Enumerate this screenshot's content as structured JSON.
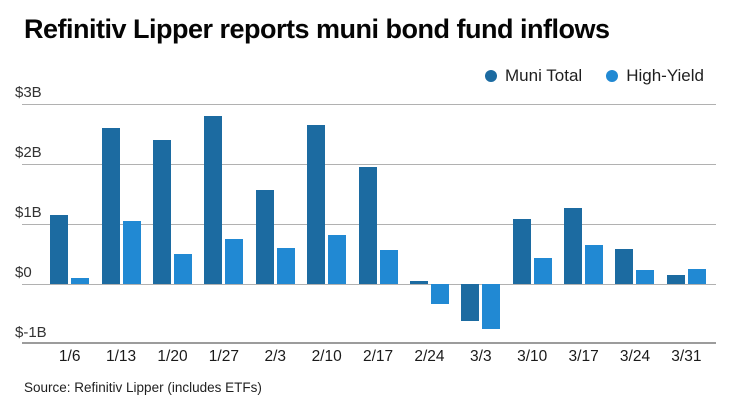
{
  "header": {
    "title": "Refinitiv Lipper reports muni bond fund inflows"
  },
  "legend": {
    "items": [
      {
        "label": "Muni Total",
        "color": "#1c6ba1"
      },
      {
        "label": "High-Yield",
        "color": "#2189d3"
      }
    ]
  },
  "source": {
    "text": "Source: Refinitiv Lipper (includes ETFs)"
  },
  "chart_data": {
    "type": "bar",
    "title": "Refinitiv Lipper reports muni bond fund inflows",
    "categories": [
      "1/6",
      "1/13",
      "1/20",
      "1/27",
      "2/3",
      "2/10",
      "2/17",
      "2/24",
      "3/3",
      "3/10",
      "3/17",
      "3/24",
      "3/31"
    ],
    "series": [
      {
        "name": "Muni Total",
        "color": "#1c6ba1",
        "values": [
          1.15,
          2.6,
          2.4,
          2.8,
          1.57,
          2.65,
          1.95,
          0.05,
          -0.62,
          1.08,
          1.27,
          0.58,
          0.15
        ]
      },
      {
        "name": "High-Yield",
        "color": "#2189d3",
        "values": [
          0.1,
          1.05,
          0.5,
          0.75,
          0.6,
          0.82,
          0.57,
          -0.33,
          -0.75,
          0.43,
          0.65,
          0.23,
          0.25
        ]
      }
    ],
    "y_axis": {
      "ticks": [
        "$3B",
        "$2B",
        "$1B",
        "$0",
        "$-1B"
      ],
      "tick_values": [
        3,
        2,
        1,
        0,
        -1
      ],
      "ylim": [
        -1,
        3
      ]
    },
    "xlabel": "",
    "ylabel": "",
    "grid": "horizontal",
    "legend_position": "top-right",
    "colors": {
      "gridline": "#b1b1b1",
      "baseline": "#9c9c9c"
    }
  }
}
